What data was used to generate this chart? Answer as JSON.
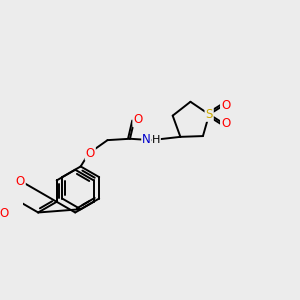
{
  "bg_color": "#ececec",
  "bond_color": "#000000",
  "bw": 1.4,
  "atom_colors": {
    "O": "#ff0000",
    "N": "#0000cc",
    "S": "#ccaa00",
    "C": "#000000"
  },
  "font_size": 8.5
}
